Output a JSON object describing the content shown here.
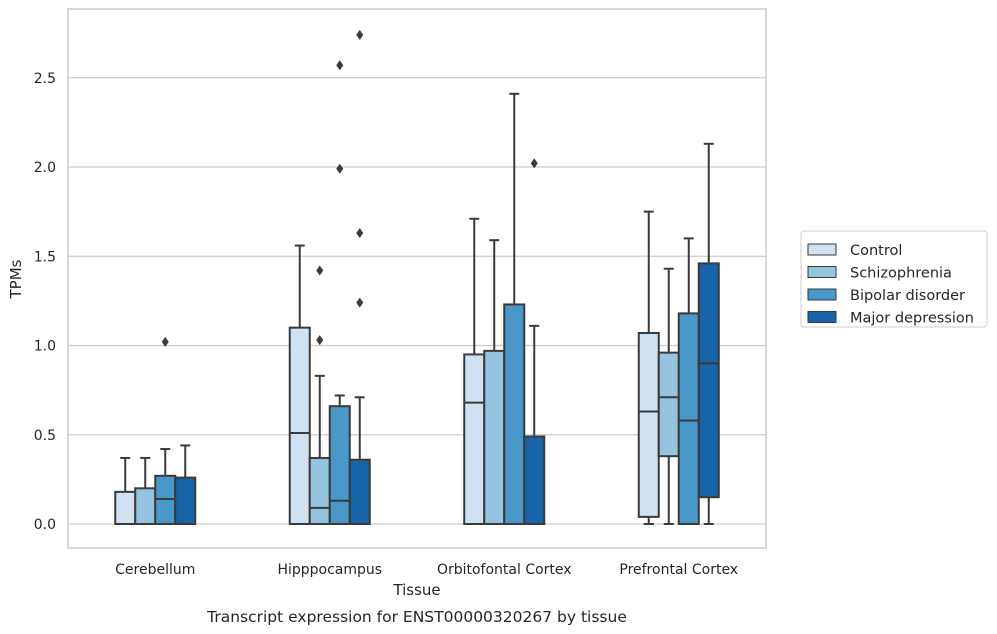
{
  "chart_data": {
    "type": "box",
    "xlabel": "Tissue",
    "ylabel": "TPMs",
    "caption": "Transcript expression for ENST00000320267 by tissue",
    "ylim": [
      -0.13,
      2.87
    ],
    "yticks": [
      "0.0",
      "0.5",
      "1.0",
      "1.5",
      "2.0",
      "2.5"
    ],
    "grid": "horizontal",
    "legend_position": "right",
    "categories": [
      "Cerebellum",
      "Hipppocampus",
      "Orbitofontal Cortex",
      "Prefrontal Cortex"
    ],
    "series": [
      {
        "name": "Control",
        "color": "#d0e1f2",
        "boxes": [
          {
            "whisker_low": 0.0,
            "q1": 0.0,
            "median": 0.0,
            "q3": 0.18,
            "whisker_high": 0.37,
            "outliers": []
          },
          {
            "whisker_low": 0.0,
            "q1": 0.0,
            "median": 0.51,
            "q3": 1.1,
            "whisker_high": 1.56,
            "outliers": []
          },
          {
            "whisker_low": 0.0,
            "q1": 0.0,
            "median": 0.68,
            "q3": 0.95,
            "whisker_high": 1.71,
            "outliers": []
          },
          {
            "whisker_low": 0.0,
            "q1": 0.04,
            "median": 0.63,
            "q3": 1.07,
            "whisker_high": 1.75,
            "outliers": []
          }
        ]
      },
      {
        "name": "Schizophrenia",
        "color": "#94c4df",
        "boxes": [
          {
            "whisker_low": 0.0,
            "q1": 0.0,
            "median": 0.0,
            "q3": 0.2,
            "whisker_high": 0.37,
            "outliers": []
          },
          {
            "whisker_low": 0.0,
            "q1": 0.0,
            "median": 0.09,
            "q3": 0.37,
            "whisker_high": 0.83,
            "outliers": [
              1.03,
              1.42
            ]
          },
          {
            "whisker_low": 0.0,
            "q1": 0.0,
            "median": 0.0,
            "q3": 0.97,
            "whisker_high": 1.59,
            "outliers": []
          },
          {
            "whisker_low": 0.0,
            "q1": 0.38,
            "median": 0.71,
            "q3": 0.96,
            "whisker_high": 1.43,
            "outliers": []
          }
        ]
      },
      {
        "name": "Bipolar disorder",
        "color": "#4a98c9",
        "boxes": [
          {
            "whisker_low": 0.0,
            "q1": 0.0,
            "median": 0.14,
            "q3": 0.27,
            "whisker_high": 0.42,
            "outliers": [
              1.02
            ]
          },
          {
            "whisker_low": 0.0,
            "q1": 0.0,
            "median": 0.13,
            "q3": 0.66,
            "whisker_high": 0.72,
            "outliers": [
              1.99,
              2.57
            ]
          },
          {
            "whisker_low": 0.0,
            "q1": 0.0,
            "median": 0.0,
            "q3": 1.23,
            "whisker_high": 2.41,
            "outliers": []
          },
          {
            "whisker_low": 0.0,
            "q1": 0.0,
            "median": 0.58,
            "q3": 1.18,
            "whisker_high": 1.6,
            "outliers": []
          }
        ]
      },
      {
        "name": "Major depression",
        "color": "#1764ab",
        "boxes": [
          {
            "whisker_low": 0.0,
            "q1": 0.0,
            "median": 0.0,
            "q3": 0.26,
            "whisker_high": 0.44,
            "outliers": []
          },
          {
            "whisker_low": 0.0,
            "q1": 0.0,
            "median": 0.0,
            "q3": 0.36,
            "whisker_high": 0.71,
            "outliers": [
              1.24,
              1.63,
              2.74
            ]
          },
          {
            "whisker_low": 0.0,
            "q1": 0.0,
            "median": 0.0,
            "q3": 0.49,
            "whisker_high": 1.11,
            "outliers": [
              2.02
            ]
          },
          {
            "whisker_low": 0.0,
            "q1": 0.15,
            "median": 0.9,
            "q3": 1.46,
            "whisker_high": 2.13,
            "outliers": []
          }
        ]
      }
    ]
  }
}
